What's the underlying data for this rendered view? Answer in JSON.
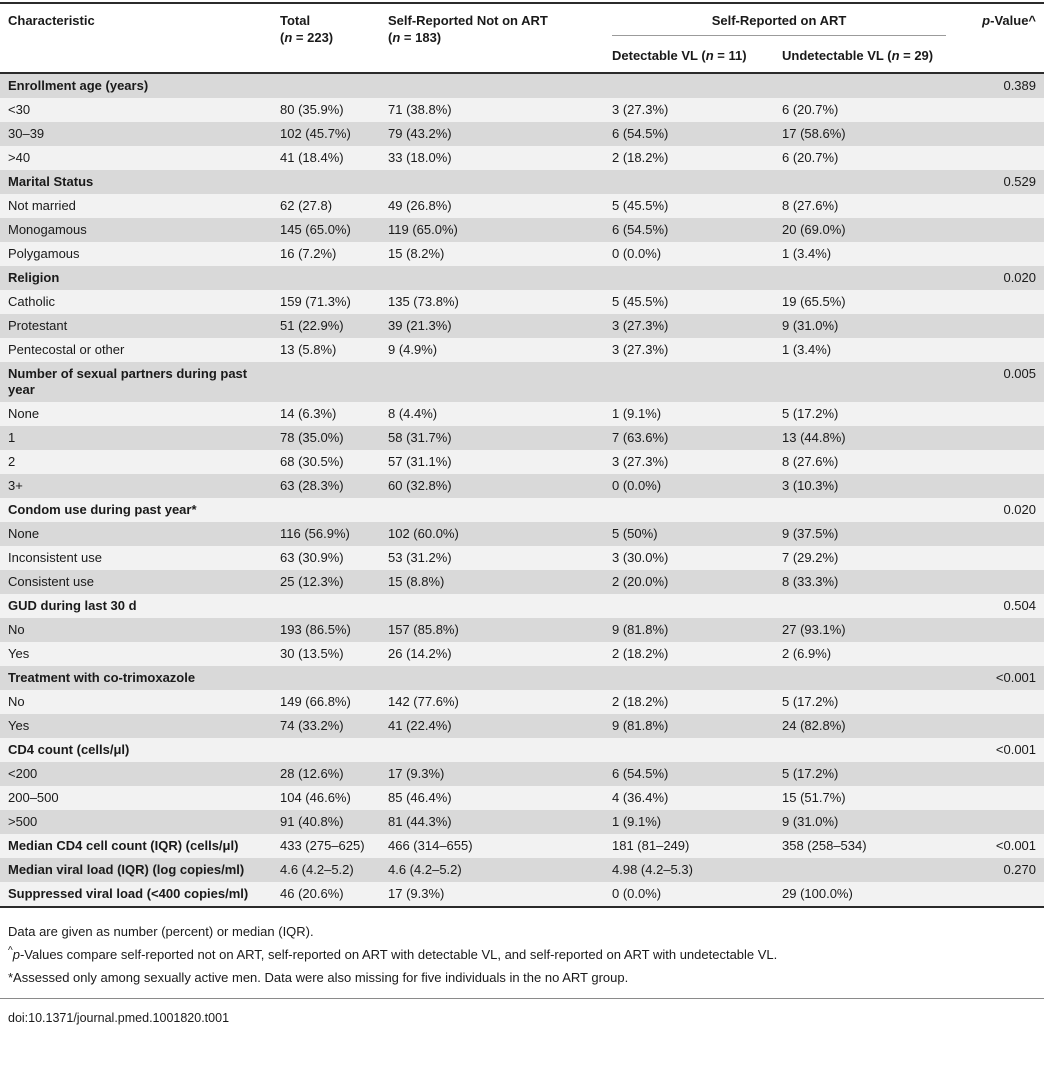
{
  "table": {
    "header": {
      "characteristic": "Characteristic",
      "total": {
        "line1": "Total",
        "open": "(",
        "n": "n",
        "rest": " = 223)"
      },
      "not_on_art": {
        "line1": "Self-Reported Not on ART",
        "open": "(",
        "n": "n",
        "rest": " = 183)"
      },
      "on_art_group": "Self-Reported on ART",
      "detectable": {
        "pre": "Detectable VL (",
        "n": "n",
        "rest": " = 11)"
      },
      "undetectable": {
        "pre": "Undetectable VL (",
        "n": "n",
        "rest": " = 29)"
      },
      "p_value": {
        "p": "p",
        "rest": "-Value",
        "sup": "^"
      }
    },
    "rows": [
      {
        "label": "Enrollment age (years)",
        "bold": true,
        "total": "",
        "no_art": "",
        "det": "",
        "undet": "",
        "p": "0.389"
      },
      {
        "label": "<30",
        "bold": false,
        "total": "80 (35.9%)",
        "no_art": "71 (38.8%)",
        "det": "3 (27.3%)",
        "undet": "6 (20.7%)",
        "p": ""
      },
      {
        "label": "30–39",
        "bold": false,
        "total": "102 (45.7%)",
        "no_art": "79 (43.2%)",
        "det": "6 (54.5%)",
        "undet": "17 (58.6%)",
        "p": ""
      },
      {
        "label": ">40",
        "bold": false,
        "total": "41 (18.4%)",
        "no_art": "33 (18.0%)",
        "det": "2 (18.2%)",
        "undet": "6 (20.7%)",
        "p": ""
      },
      {
        "label": "Marital Status",
        "bold": true,
        "total": "",
        "no_art": "",
        "det": "",
        "undet": "",
        "p": "0.529"
      },
      {
        "label": "Not married",
        "bold": false,
        "total": "62 (27.8)",
        "no_art": "49 (26.8%)",
        "det": "5 (45.5%)",
        "undet": "8 (27.6%)",
        "p": ""
      },
      {
        "label": "Monogamous",
        "bold": false,
        "total": "145 (65.0%)",
        "no_art": "119 (65.0%)",
        "det": "6 (54.5%)",
        "undet": "20 (69.0%)",
        "p": ""
      },
      {
        "label": "Polygamous",
        "bold": false,
        "total": "16 (7.2%)",
        "no_art": "15 (8.2%)",
        "det": "0 (0.0%)",
        "undet": "1 (3.4%)",
        "p": ""
      },
      {
        "label": "Religion",
        "bold": true,
        "total": "",
        "no_art": "",
        "det": "",
        "undet": "",
        "p": "0.020"
      },
      {
        "label": "Catholic",
        "bold": false,
        "total": "159 (71.3%)",
        "no_art": "135 (73.8%)",
        "det": "5 (45.5%)",
        "undet": "19 (65.5%)",
        "p": ""
      },
      {
        "label": "Protestant",
        "bold": false,
        "total": "51 (22.9%)",
        "no_art": "39 (21.3%)",
        "det": "3 (27.3%)",
        "undet": "9 (31.0%)",
        "p": ""
      },
      {
        "label": "Pentecostal or other",
        "bold": false,
        "total": "13 (5.8%)",
        "no_art": "9 (4.9%)",
        "det": "3 (27.3%)",
        "undet": "1 (3.4%)",
        "p": ""
      },
      {
        "label": "Number of sexual partners during past year",
        "bold": true,
        "total": "",
        "no_art": "",
        "det": "",
        "undet": "",
        "p": "0.005"
      },
      {
        "label": "None",
        "bold": false,
        "total": "14 (6.3%)",
        "no_art": "8 (4.4%)",
        "det": "1 (9.1%)",
        "undet": "5 (17.2%)",
        "p": ""
      },
      {
        "label": "1",
        "bold": false,
        "total": "78 (35.0%)",
        "no_art": "58 (31.7%)",
        "det": "7 (63.6%)",
        "undet": "13 (44.8%)",
        "p": ""
      },
      {
        "label": "2",
        "bold": false,
        "total": "68 (30.5%)",
        "no_art": "57 (31.1%)",
        "det": "3 (27.3%)",
        "undet": "8 (27.6%)",
        "p": ""
      },
      {
        "label": "3+",
        "bold": false,
        "total": "63 (28.3%)",
        "no_art": "60 (32.8%)",
        "det": "0 (0.0%)",
        "undet": "3 (10.3%)",
        "p": ""
      },
      {
        "label": "Condom use during past year*",
        "bold": true,
        "total": "",
        "no_art": "",
        "det": "",
        "undet": "",
        "p": "0.020"
      },
      {
        "label": "None",
        "bold": false,
        "total": "116 (56.9%)",
        "no_art": "102 (60.0%)",
        "det": "5 (50%)",
        "undet": "9 (37.5%)",
        "p": ""
      },
      {
        "label": "Inconsistent use",
        "bold": false,
        "total": "63 (30.9%)",
        "no_art": "53 (31.2%)",
        "det": "3 (30.0%)",
        "undet": "7 (29.2%)",
        "p": ""
      },
      {
        "label": "Consistent use",
        "bold": false,
        "total": "25 (12.3%)",
        "no_art": "15 (8.8%)",
        "det": "2 (20.0%)",
        "undet": "8 (33.3%)",
        "p": ""
      },
      {
        "label": "GUD during last 30 d",
        "bold": true,
        "total": "",
        "no_art": "",
        "det": "",
        "undet": "",
        "p": "0.504"
      },
      {
        "label": "No",
        "bold": false,
        "total": "193 (86.5%)",
        "no_art": "157 (85.8%)",
        "det": "9 (81.8%)",
        "undet": "27 (93.1%)",
        "p": ""
      },
      {
        "label": "Yes",
        "bold": false,
        "total": "30 (13.5%)",
        "no_art": "26 (14.2%)",
        "det": "2 (18.2%)",
        "undet": "2 (6.9%)",
        "p": ""
      },
      {
        "label": "Treatment with co-trimoxazole",
        "bold": true,
        "total": "",
        "no_art": "",
        "det": "",
        "undet": "",
        "p": "<0.001"
      },
      {
        "label": "No",
        "bold": false,
        "total": "149 (66.8%)",
        "no_art": "142 (77.6%)",
        "det": "2 (18.2%)",
        "undet": "5 (17.2%)",
        "p": ""
      },
      {
        "label": "Yes",
        "bold": false,
        "total": "74 (33.2%)",
        "no_art": "41 (22.4%)",
        "det": "9 (81.8%)",
        "undet": "24 (82.8%)",
        "p": ""
      },
      {
        "label": "CD4 count (cells/μl)",
        "bold": true,
        "total": "",
        "no_art": "",
        "det": "",
        "undet": "",
        "p": "<0.001"
      },
      {
        "label": "<200",
        "bold": false,
        "total": "28 (12.6%)",
        "no_art": "17 (9.3%)",
        "det": "6 (54.5%)",
        "undet": "5 (17.2%)",
        "p": ""
      },
      {
        "label": "200–500",
        "bold": false,
        "total": "104 (46.6%)",
        "no_art": "85 (46.4%)",
        "det": "4 (36.4%)",
        "undet": "15 (51.7%)",
        "p": ""
      },
      {
        "label": ">500",
        "bold": false,
        "total": "91 (40.8%)",
        "no_art": "81 (44.3%)",
        "det": "1 (9.1%)",
        "undet": "9 (31.0%)",
        "p": ""
      },
      {
        "label": "Median CD4 cell count (IQR) (cells/μl)",
        "bold": true,
        "total": "433 (275–625)",
        "no_art": "466 (314–655)",
        "det": "181 (81–249)",
        "undet": "358 (258–534)",
        "p": "<0.001"
      },
      {
        "label": "Median viral load (IQR) (log copies/ml)",
        "bold": true,
        "total": "4.6 (4.2–5.2)",
        "no_art": "4.6 (4.2–5.2)",
        "det": "4.98 (4.2–5.3)",
        "undet": "",
        "p": "0.270"
      },
      {
        "label": "Suppressed viral load (<400 copies/ml)",
        "bold": true,
        "total": "46 (20.6%)",
        "no_art": "17 (9.3%)",
        "det": "0 (0.0%)",
        "undet": "29 (100.0%)",
        "p": ""
      }
    ]
  },
  "footnotes": {
    "line1": "Data are given as number (percent) or median (IQR).",
    "line2": {
      "sup": "^",
      "p": "p",
      "rest": "-Values compare self-reported not on ART, self-reported on ART with detectable VL, and self-reported on ART with undetectable VL."
    },
    "line3": "*Assessed only among sexually active men. Data were also missing for five individuals in the no ART group."
  },
  "doi": "doi:10.1371/journal.pmed.1001820.t001"
}
